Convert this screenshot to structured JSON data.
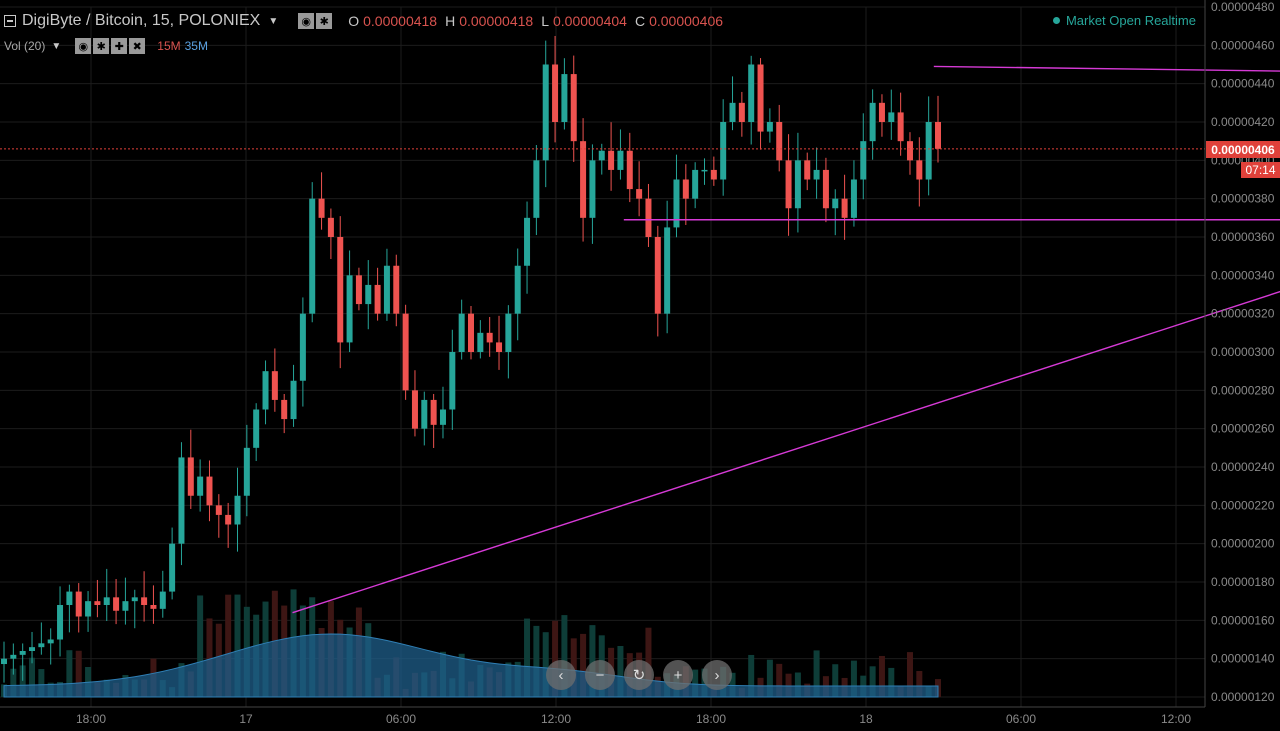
{
  "header": {
    "symbol": "DigiByte / Bitcoin, 15, POLONIEX",
    "ohlc": [
      {
        "key": "O",
        "value": "0.00000418"
      },
      {
        "key": "H",
        "value": "0.00000418"
      },
      {
        "key": "L",
        "value": "0.00000404"
      },
      {
        "key": "C",
        "value": "0.00000406"
      }
    ],
    "indicator": "Vol (20)",
    "vol_15m": "15M",
    "vol_35m": "35M",
    "market_status": "Market Open Realtime"
  },
  "price_tag": "0.00000406",
  "countdown_tag": "07:14",
  "icons": {
    "menu": "menu-square-icon",
    "toolbar1": [
      "eye-icon",
      "gear-icon"
    ],
    "toolbar2": [
      "eye-icon",
      "gear-icon",
      "plus-icon",
      "close-icon"
    ],
    "nav": [
      "chevron-left-icon",
      "zoom-out-icon",
      "reset-icon",
      "zoom-in-icon",
      "chevron-right-icon"
    ]
  },
  "colors": {
    "up": "#26a69a",
    "down": "#ef5350",
    "trendline": "#d63ad6",
    "price_line": "#e0413a",
    "volume_area": "#1f5f8b",
    "grid": "#1c1c1c",
    "axis_text": "#8a8a8a"
  },
  "chart_data": {
    "type": "candlestick",
    "title": "DigiByte / Bitcoin, 15, POLONIEX",
    "timeframe": "15",
    "x_tick_labels": [
      "18:00",
      "17",
      "06:00",
      "12:00",
      "18:00",
      "18",
      "06:00",
      "12:00"
    ],
    "y_tick_labels": [
      "0.00000480",
      "0.00000460",
      "0.00000440",
      "0.00000420",
      "0.00000400",
      "0.00000380",
      "0.00000360",
      "0.00000340",
      "0.00000320",
      "0.00000300",
      "0.00000280",
      "0.00000260",
      "0.00000240",
      "0.00000220",
      "0.00000200",
      "0.00000180",
      "0.00000160",
      "0.00000140",
      "0.00000120"
    ],
    "ylim": [
      1.2e-06,
      4.8e-06
    ],
    "last_price": 4.06e-06,
    "trendlines": [
      {
        "name": "upper-resistance",
        "x": [
          21.75,
          47.75
        ],
        "y": [
          4.49e-06,
          4.42e-06
        ]
      },
      {
        "name": "horizontal-support",
        "x": [
          13.75,
          47.4
        ],
        "y": [
          3.69e-06,
          3.69e-06
        ]
      },
      {
        "name": "rising-support",
        "x": [
          5.2,
          47.5
        ],
        "y": [
          1.64e-06,
          4.42e-06
        ]
      }
    ],
    "candles_close": [
      1.4e-06,
      1.42e-06,
      1.44e-06,
      1.46e-06,
      1.48e-06,
      1.5e-06,
      1.68e-06,
      1.75e-06,
      1.62e-06,
      1.7e-06,
      1.68e-06,
      1.72e-06,
      1.65e-06,
      1.7e-06,
      1.72e-06,
      1.68e-06,
      1.66e-06,
      1.75e-06,
      2e-06,
      2.45e-06,
      2.25e-06,
      2.35e-06,
      2.2e-06,
      2.15e-06,
      2.1e-06,
      2.25e-06,
      2.5e-06,
      2.7e-06,
      2.9e-06,
      2.75e-06,
      2.65e-06,
      2.85e-06,
      3.2e-06,
      3.8e-06,
      3.7e-06,
      3.6e-06,
      3.05e-06,
      3.4e-06,
      3.25e-06,
      3.35e-06,
      3.2e-06,
      3.45e-06,
      3.2e-06,
      2.8e-06,
      2.6e-06,
      2.75e-06,
      2.62e-06,
      2.7e-06,
      3e-06,
      3.2e-06,
      3e-06,
      3.1e-06,
      3.05e-06,
      3e-06,
      3.2e-06,
      3.45e-06,
      3.7e-06,
      4e-06,
      4.5e-06,
      4.2e-06,
      4.45e-06,
      4.1e-06,
      3.7e-06,
      4e-06,
      4.05e-06,
      3.95e-06,
      4.05e-06,
      3.85e-06,
      3.8e-06,
      3.6e-06,
      3.2e-06,
      3.65e-06,
      3.9e-06,
      3.8e-06,
      3.95e-06,
      3.95e-06,
      3.9e-06,
      4.2e-06,
      4.3e-06,
      4.2e-06,
      4.5e-06,
      4.15e-06,
      4.2e-06,
      4e-06,
      3.75e-06,
      4e-06,
      3.9e-06,
      3.95e-06,
      3.75e-06,
      3.8e-06,
      3.7e-06,
      3.9e-06,
      4.1e-06,
      4.3e-06,
      4.2e-06,
      4.25e-06,
      4.1e-06,
      4e-06,
      3.9e-06,
      4.2e-06,
      4.06e-06
    ]
  }
}
